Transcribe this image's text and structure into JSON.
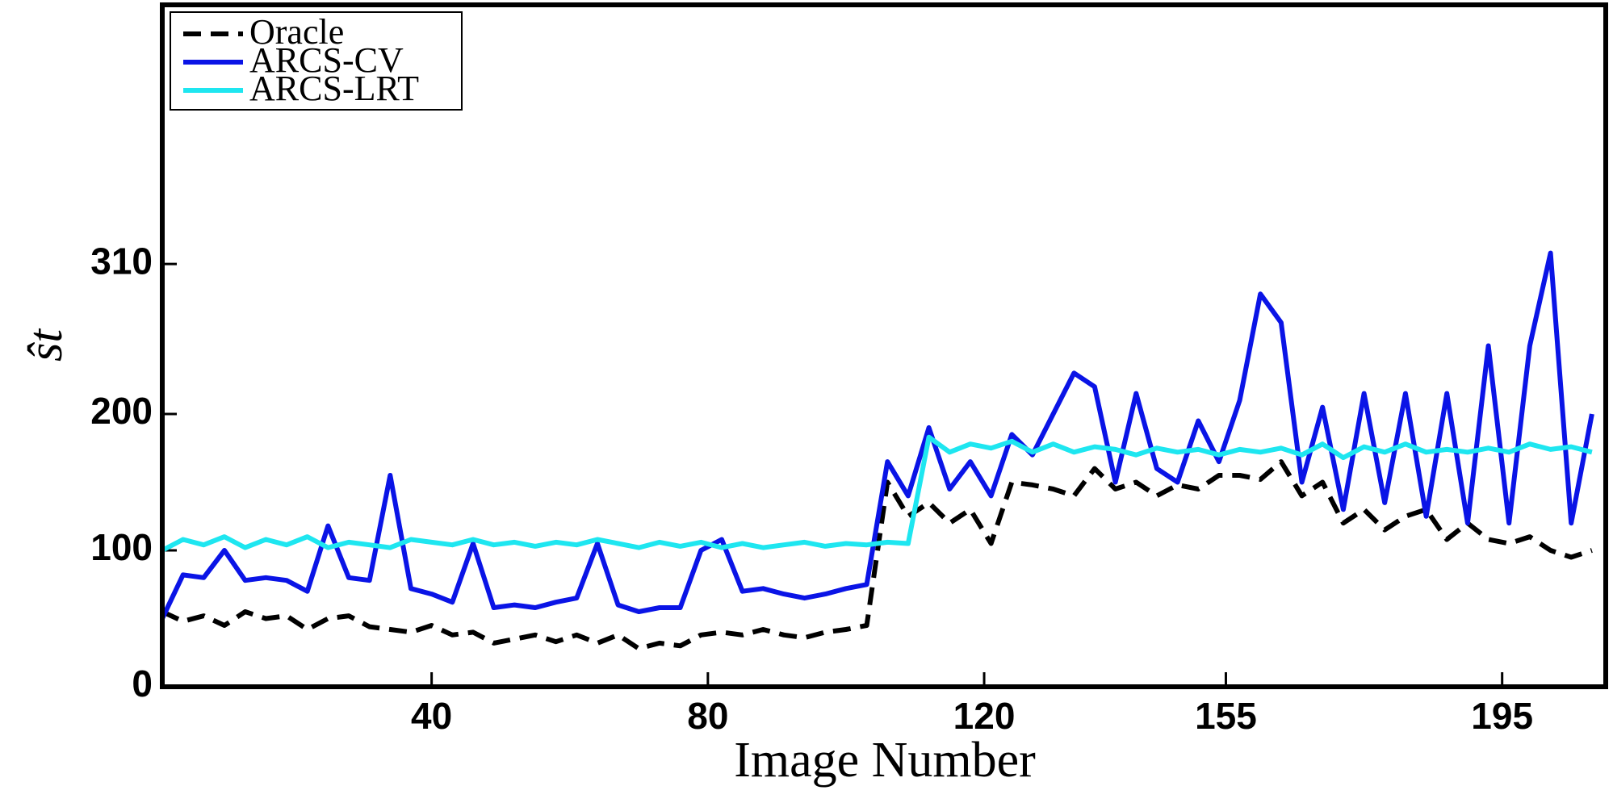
{
  "chart_data": {
    "type": "line",
    "x_label": "Image Number",
    "y_label": "ŝt",
    "x": [
      1,
      4,
      7,
      10,
      13,
      16,
      19,
      22,
      25,
      28,
      31,
      34,
      37,
      40,
      43,
      46,
      49,
      52,
      55,
      58,
      61,
      64,
      67,
      70,
      73,
      76,
      79,
      82,
      85,
      88,
      91,
      94,
      97,
      100,
      103,
      106,
      109,
      112,
      115,
      118,
      121,
      124,
      127,
      130,
      133,
      136,
      139,
      142,
      145,
      148,
      151,
      154,
      157,
      160,
      163,
      166,
      169,
      172,
      175,
      178,
      181,
      184,
      187,
      190,
      193,
      196,
      199,
      202,
      205,
      208
    ],
    "series": [
      {
        "name": "Oracle",
        "color": "#000000",
        "dash": true,
        "values": [
          55,
          48,
          52,
          45,
          55,
          50,
          52,
          42,
          50,
          52,
          44,
          42,
          40,
          45,
          38,
          40,
          32,
          35,
          38,
          33,
          38,
          32,
          38,
          28,
          32,
          30,
          38,
          40,
          38,
          42,
          38,
          36,
          40,
          42,
          45,
          150,
          125,
          135,
          120,
          130,
          105,
          150,
          148,
          145,
          140,
          160,
          145,
          150,
          140,
          148,
          145,
          155,
          155,
          152,
          165,
          140,
          150,
          120,
          130,
          115,
          125,
          130,
          108,
          120,
          108,
          105,
          110,
          100,
          95,
          100
        ]
      },
      {
        "name": "ARCS-CV",
        "color": "#0a14e6",
        "dash": false,
        "values": [
          50,
          82,
          80,
          100,
          78,
          80,
          78,
          70,
          118,
          80,
          78,
          155,
          72,
          68,
          62,
          105,
          58,
          60,
          58,
          62,
          65,
          105,
          60,
          55,
          58,
          58,
          100,
          108,
          70,
          72,
          68,
          65,
          68,
          72,
          75,
          165,
          140,
          190,
          145,
          165,
          140,
          185,
          170,
          200,
          230,
          220,
          150,
          215,
          160,
          150,
          195,
          165,
          210,
          288,
          267,
          150,
          205,
          130,
          215,
          135,
          215,
          125,
          215,
          120,
          250,
          120,
          250,
          318,
          120,
          200
        ]
      },
      {
        "name": "ARCS-LRT",
        "color": "#1ee6f0",
        "dash": false,
        "values": [
          100,
          108,
          104,
          110,
          102,
          108,
          104,
          110,
          102,
          106,
          104,
          102,
          108,
          106,
          104,
          108,
          104,
          106,
          103,
          106,
          104,
          108,
          105,
          102,
          106,
          103,
          106,
          102,
          105,
          102,
          104,
          106,
          103,
          105,
          104,
          106,
          105,
          183,
          172,
          178,
          175,
          180,
          172,
          178,
          172,
          176,
          174,
          170,
          175,
          172,
          174,
          170,
          174,
          172,
          175,
          170,
          178,
          168,
          176,
          172,
          178,
          172,
          174,
          172,
          175,
          172,
          178,
          174,
          176,
          172
        ]
      }
    ],
    "xlim": [
      1,
      210
    ],
    "xticks": [
      40,
      80,
      120,
      155,
      195
    ],
    "ylim": [
      0,
      500
    ],
    "yticks": [
      0,
      100,
      200,
      310
    ],
    "legend": "upper left"
  }
}
